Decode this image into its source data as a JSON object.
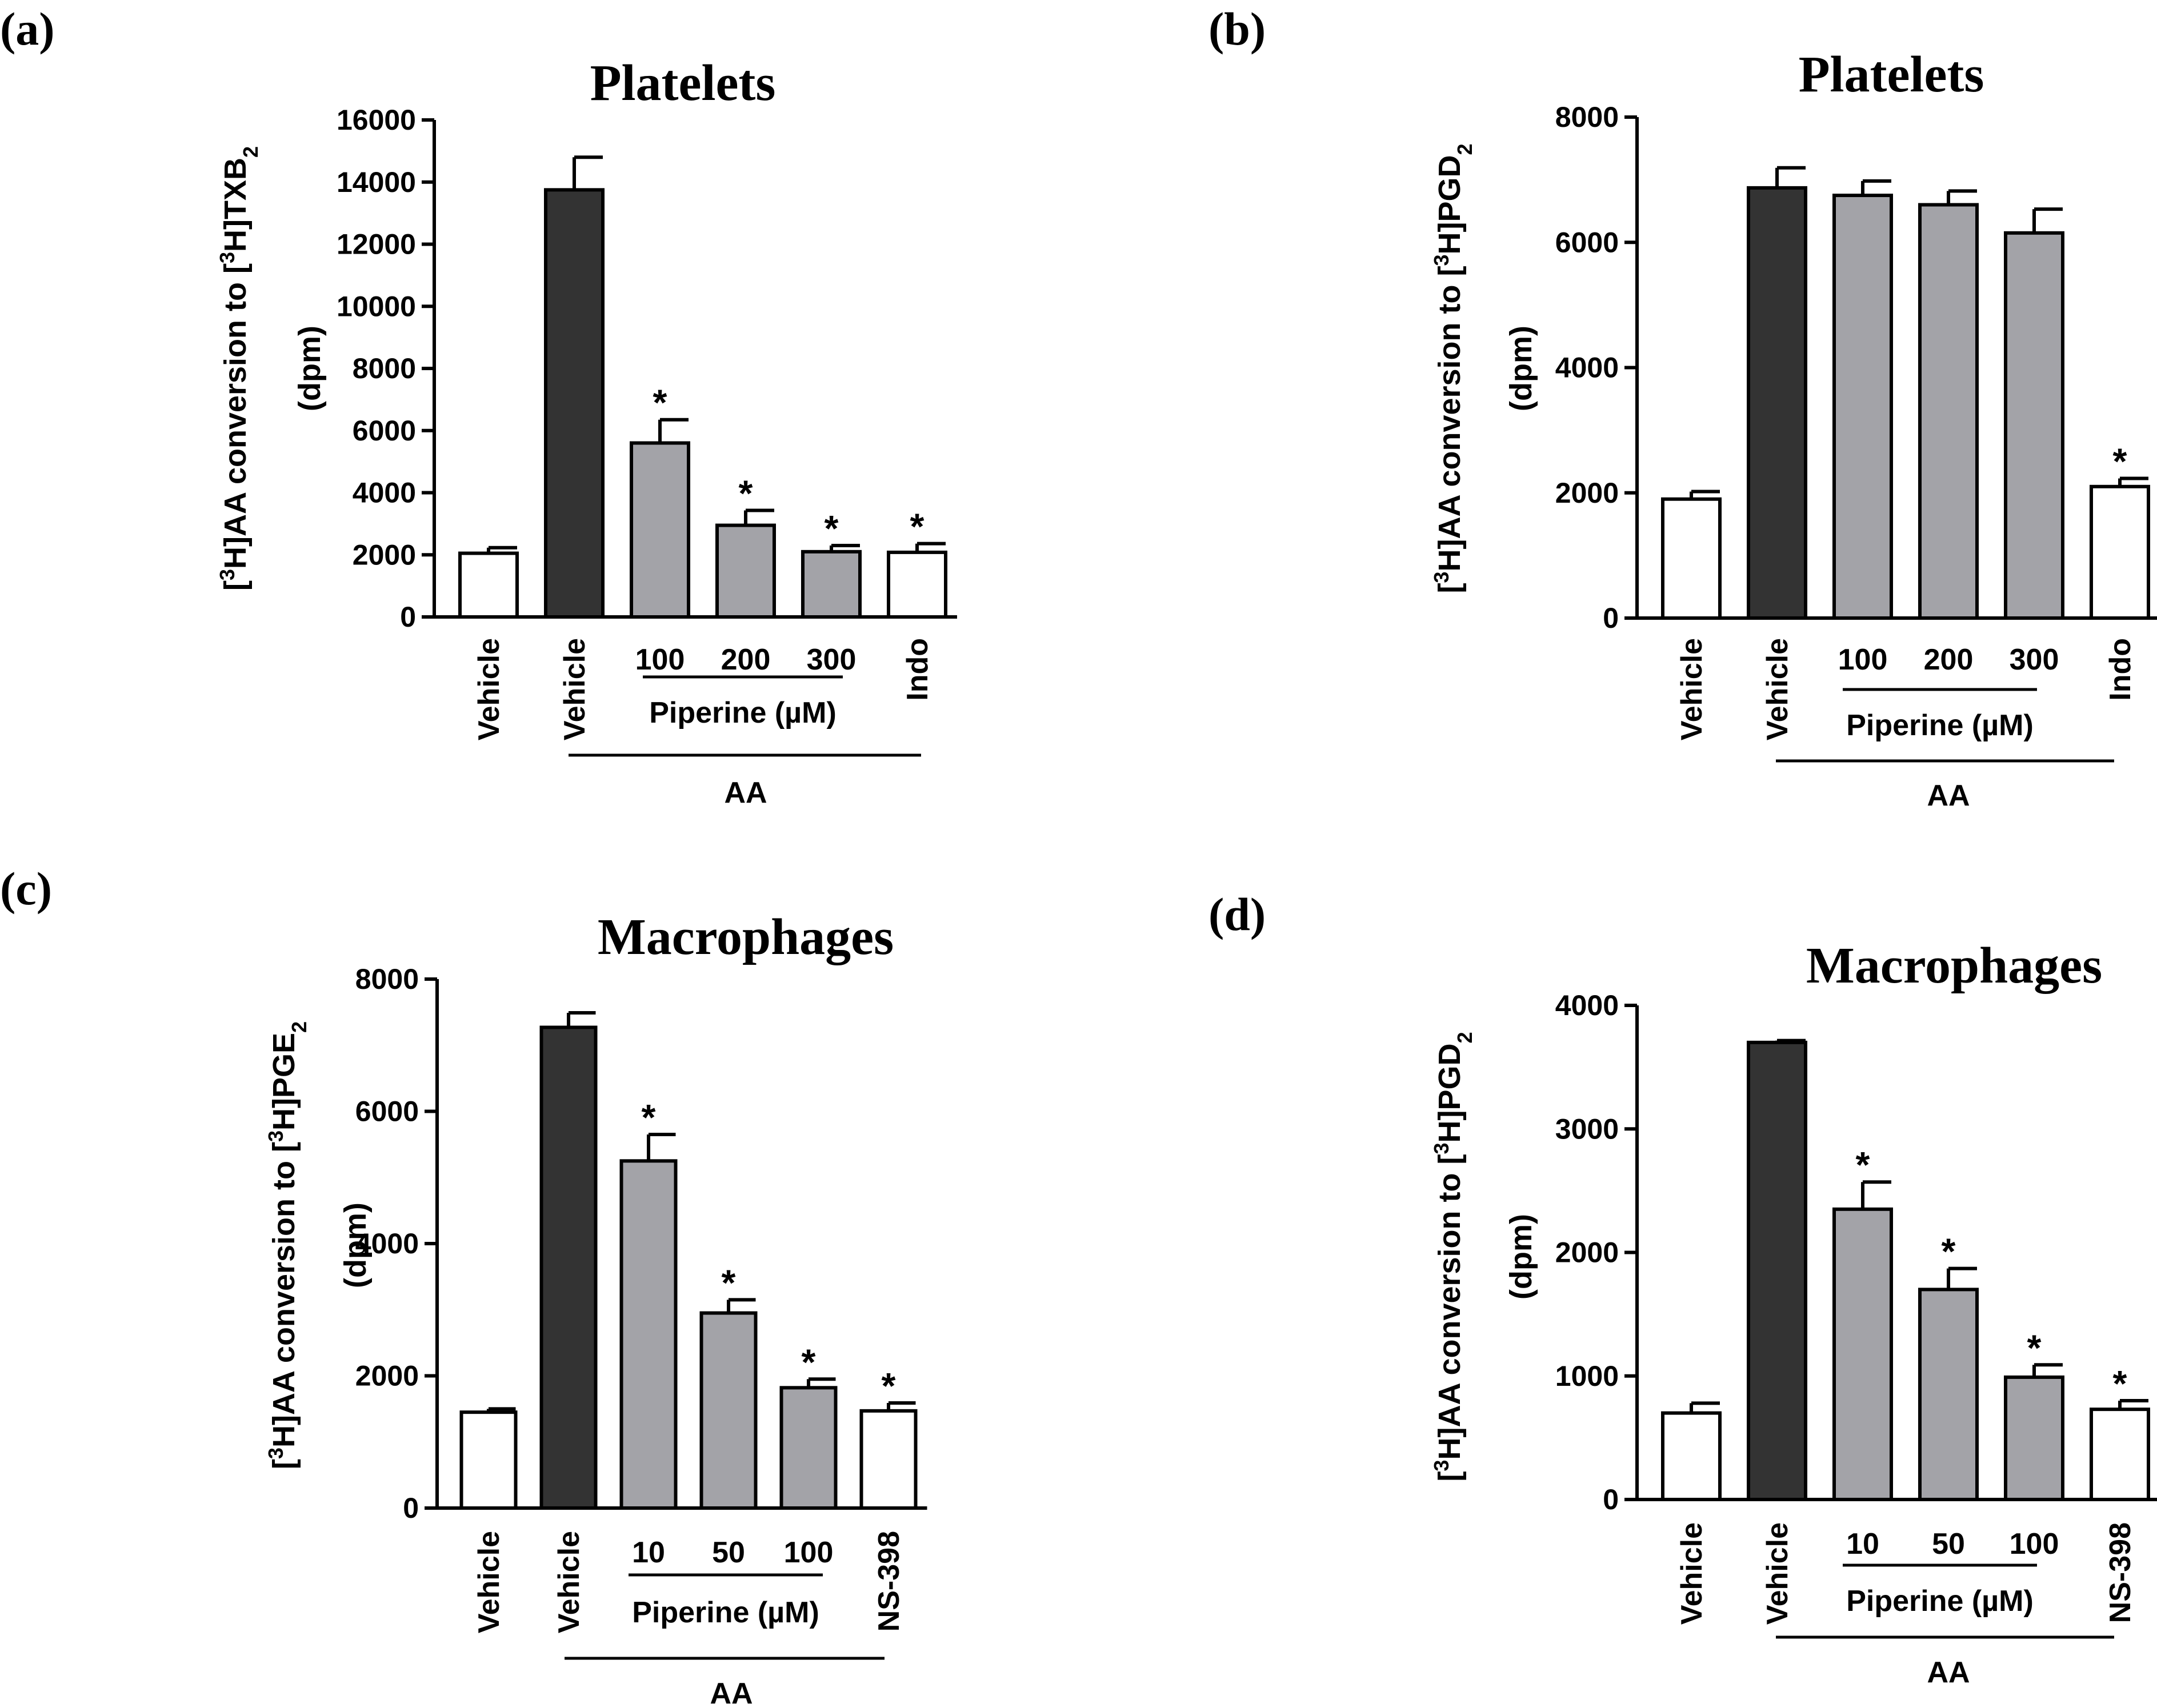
{
  "colors": {
    "white_bar": "#ffffff",
    "dark_bar": "#333333",
    "gray_bar": "#a3a3a8",
    "stroke": "#000000"
  },
  "chart_data": [
    {
      "panel": "(a)",
      "type": "bar",
      "title": "Platelets",
      "ylabel_prefix": "[",
      "ylabel_sup": "3",
      "ylabel_mid": "H]AA conversion to [",
      "ylabel_sup2": "3",
      "ylabel_rest": "H]TXB",
      "ylabel_sub": "2",
      "ylabel_units": "(dpm)",
      "ylim": [
        0,
        16000
      ],
      "yticks": [
        "0",
        "2000",
        "4000",
        "6000",
        "8000",
        "10000",
        "12000",
        "14000",
        "16000"
      ],
      "categories": [
        "Vehicle",
        "Vehicle",
        "100",
        "200",
        "300",
        "Indo"
      ],
      "values": [
        2050,
        13750,
        5600,
        2950,
        2100,
        2080
      ],
      "errors": [
        180,
        1050,
        750,
        480,
        200,
        280
      ],
      "significant": [
        false,
        false,
        true,
        true,
        true,
        true
      ],
      "bar_styles": [
        "white",
        "dark",
        "gray",
        "gray",
        "gray",
        "white"
      ],
      "piperine_label": "Piperine (µM)",
      "group_label": "AA"
    },
    {
      "panel": "(b)",
      "type": "bar",
      "title": "Platelets",
      "ylabel_prefix": "[",
      "ylabel_sup": "3",
      "ylabel_mid": "H]AA conversion to [",
      "ylabel_sup2": "3",
      "ylabel_rest": "H]PGD",
      "ylabel_sub": "2",
      "ylabel_units": "(dpm)",
      "ylim": [
        0,
        8000
      ],
      "yticks": [
        "0",
        "2000",
        "4000",
        "6000",
        "8000"
      ],
      "categories": [
        "Vehicle",
        "Vehicle",
        "100",
        "200",
        "300",
        "Indo"
      ],
      "values": [
        1900,
        6870,
        6750,
        6600,
        6150,
        2100
      ],
      "errors": [
        120,
        320,
        230,
        220,
        380,
        130
      ],
      "significant": [
        false,
        false,
        false,
        false,
        false,
        true
      ],
      "bar_styles": [
        "white",
        "dark",
        "gray",
        "gray",
        "gray",
        "white"
      ],
      "piperine_label": "Piperine (µM)",
      "group_label": "AA"
    },
    {
      "panel": "(c)",
      "type": "bar",
      "title": "Macrophages",
      "ylabel_prefix": "[",
      "ylabel_sup": "3",
      "ylabel_mid": "H]AA conversion to [",
      "ylabel_sup2": "3",
      "ylabel_rest": "H]PGE",
      "ylabel_sub": "2",
      "ylabel_units": "(dpm)",
      "ylim": [
        0,
        8000
      ],
      "yticks": [
        "0",
        "2000",
        "4000",
        "6000",
        "8000"
      ],
      "categories": [
        "Vehicle",
        "Vehicle",
        "10",
        "50",
        "100",
        "NS-398"
      ],
      "values": [
        1450,
        7270,
        5250,
        2950,
        1820,
        1470
      ],
      "errors": [
        50,
        220,
        400,
        200,
        130,
        120
      ],
      "significant": [
        false,
        false,
        true,
        true,
        true,
        true
      ],
      "bar_styles": [
        "white",
        "dark",
        "gray",
        "gray",
        "gray",
        "white"
      ],
      "piperine_label": "Piperine (µM)",
      "group_label": "AA"
    },
    {
      "panel": "(d)",
      "type": "bar",
      "title": "Macrophages",
      "ylabel_prefix": "[",
      "ylabel_sup": "3",
      "ylabel_mid": "H]AA conversion to [",
      "ylabel_sup2": "3",
      "ylabel_rest": "H]PGD",
      "ylabel_sub": "2",
      "ylabel_units": "(dpm)",
      "ylim": [
        0,
        4000
      ],
      "yticks": [
        "0",
        "1000",
        "2000",
        "3000",
        "4000"
      ],
      "categories": [
        "Vehicle",
        "Vehicle",
        "10",
        "50",
        "100",
        "NS-398"
      ],
      "values": [
        700,
        3700,
        2350,
        1700,
        990,
        730
      ],
      "errors": [
        80,
        15,
        220,
        170,
        100,
        70
      ],
      "significant": [
        false,
        false,
        true,
        true,
        true,
        true
      ],
      "bar_styles": [
        "white",
        "dark",
        "gray",
        "gray",
        "gray",
        "white"
      ],
      "piperine_label": "Piperine (µM)",
      "group_label": "AA"
    }
  ]
}
